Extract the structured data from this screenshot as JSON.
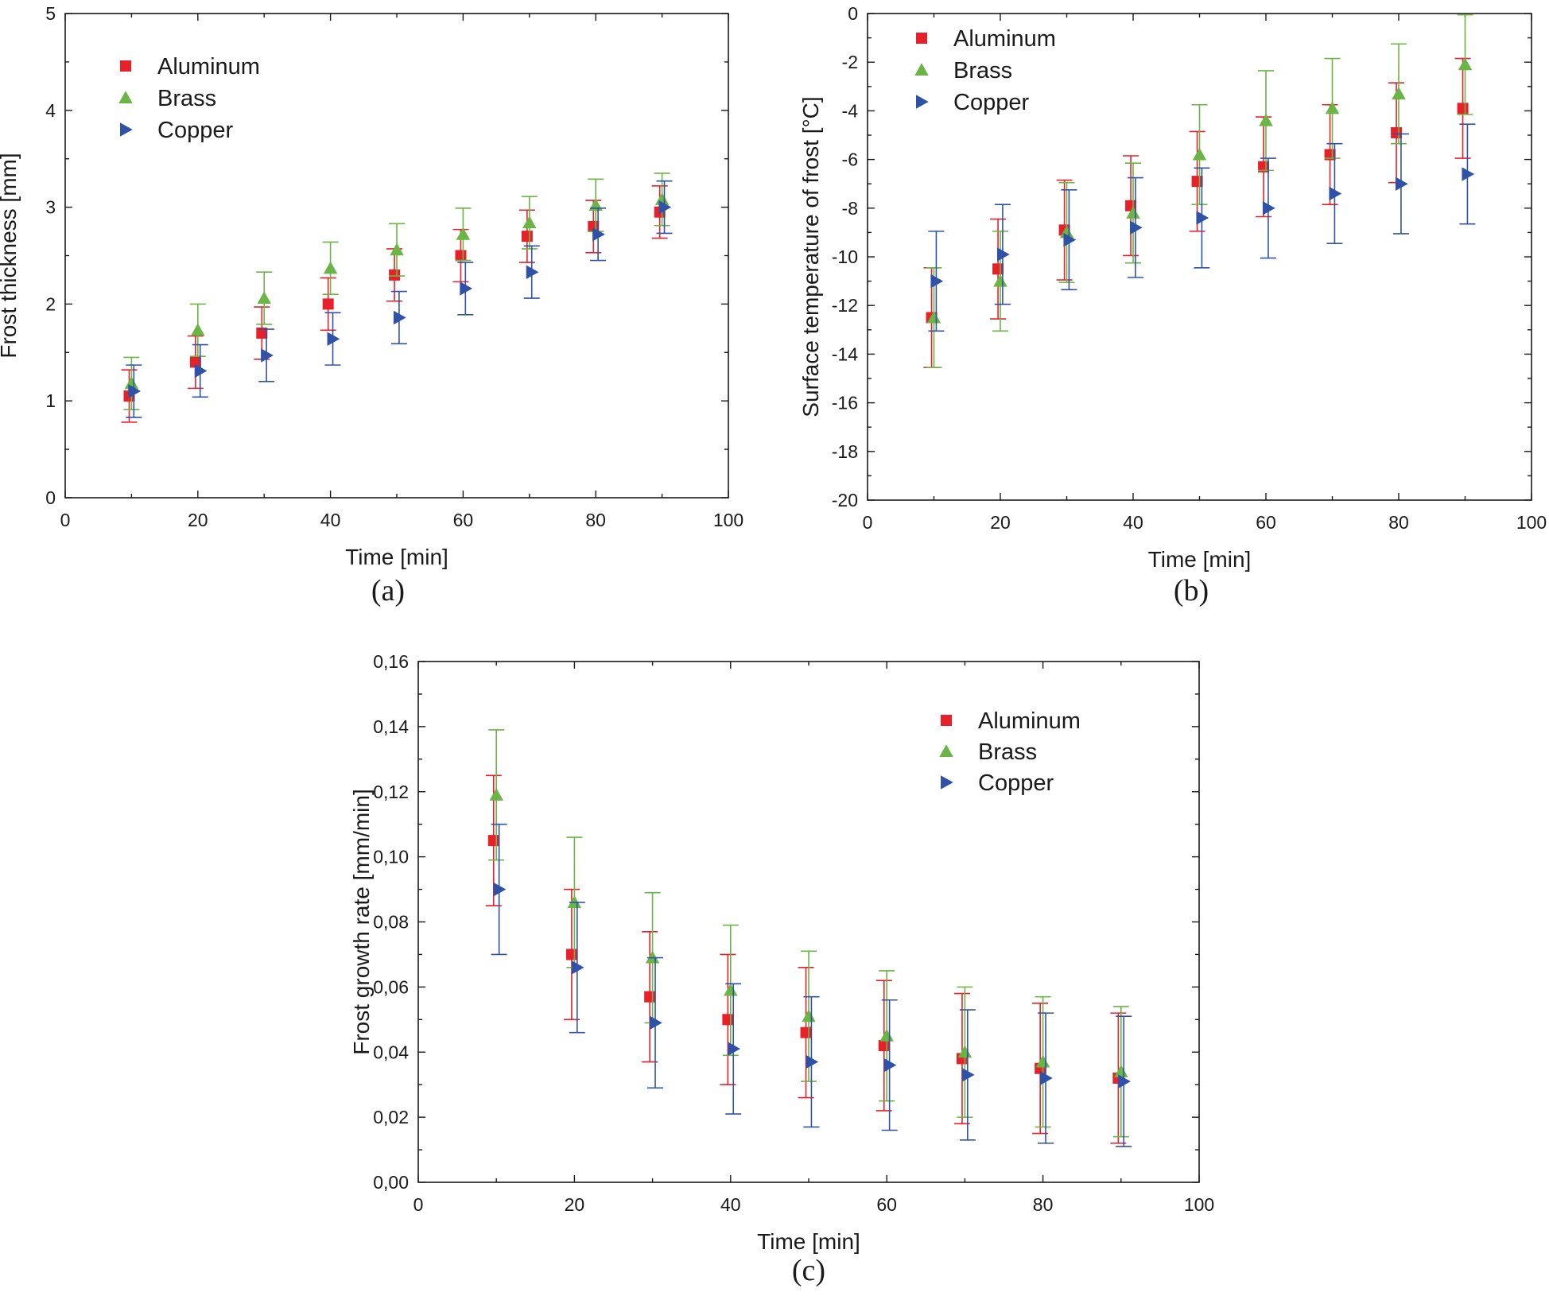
{
  "chart_data": [
    {
      "type": "scatter",
      "panel": "(a)",
      "xlabel": "Time [min]",
      "ylabel": "Frost thickness [mm]",
      "xlim": [
        0,
        100
      ],
      "ylim": [
        0,
        5
      ],
      "xticks": [
        0,
        20,
        40,
        60,
        80,
        100
      ],
      "yticks": [
        0,
        1,
        2,
        3,
        4,
        5
      ],
      "x_tick_labels": [
        "0",
        "20",
        "40",
        "60",
        "80",
        "100"
      ],
      "y_tick_labels": [
        "0",
        "1",
        "2",
        "3",
        "4",
        "5"
      ],
      "legend": "top-left",
      "grid": false,
      "x": [
        10,
        20,
        30,
        40,
        50,
        60,
        70,
        80,
        90
      ],
      "series": [
        {
          "name": "Aluminum",
          "marker": "square",
          "color": "#e8202a",
          "values": [
            1.05,
            1.4,
            1.7,
            2.0,
            2.3,
            2.5,
            2.7,
            2.8,
            2.95
          ],
          "errors": [
            0.27,
            0.27,
            0.27,
            0.27,
            0.27,
            0.27,
            0.27,
            0.27,
            0.27
          ]
        },
        {
          "name": "Brass",
          "marker": "triangle-up",
          "color": "#6ab545",
          "values": [
            1.18,
            1.73,
            2.06,
            2.37,
            2.56,
            2.72,
            2.84,
            3.02,
            3.08
          ],
          "errors": [
            0.27,
            0.27,
            0.27,
            0.27,
            0.27,
            0.27,
            0.27,
            0.27,
            0.27
          ]
        },
        {
          "name": "Copper",
          "marker": "triangle-right",
          "color": "#2f52a6",
          "values": [
            1.1,
            1.31,
            1.47,
            1.64,
            1.86,
            2.16,
            2.33,
            2.72,
            3.0
          ],
          "errors": [
            0.27,
            0.27,
            0.27,
            0.27,
            0.27,
            0.27,
            0.27,
            0.27,
            0.27
          ]
        }
      ]
    },
    {
      "type": "scatter",
      "panel": "(b)",
      "xlabel": "Time [min]",
      "ylabel": "Surface temperature of frost [°C]",
      "xlim": [
        0,
        100
      ],
      "ylim": [
        -20,
        0
      ],
      "xticks": [
        0,
        20,
        40,
        60,
        80,
        100
      ],
      "yticks": [
        -20,
        -18,
        -16,
        -14,
        -12,
        -10,
        -8,
        -6,
        -4,
        -2,
        0
      ],
      "x_tick_labels": [
        "0",
        "20",
        "40",
        "60",
        "80",
        "100"
      ],
      "y_tick_labels": [
        "-20",
        "-18",
        "-16",
        "-14",
        "-12",
        "-10",
        "-8",
        "-6",
        "-4",
        "-2",
        "0"
      ],
      "legend": "top-left",
      "grid": false,
      "x": [
        10,
        20,
        30,
        40,
        50,
        60,
        70,
        80,
        90
      ],
      "series": [
        {
          "name": "Aluminum",
          "marker": "square",
          "color": "#e8202a",
          "values": [
            -12.5,
            -10.5,
            -8.9,
            -7.9,
            -6.9,
            -6.3,
            -5.8,
            -4.9,
            -3.9
          ],
          "errors": [
            2.05,
            2.05,
            2.05,
            2.05,
            2.05,
            2.05,
            2.05,
            2.05,
            2.05
          ]
        },
        {
          "name": "Brass",
          "marker": "triangle-up",
          "color": "#6ab545",
          "values": [
            -12.5,
            -11.0,
            -9.0,
            -8.2,
            -5.8,
            -4.4,
            -3.9,
            -3.3,
            -2.1
          ],
          "errors": [
            2.05,
            2.05,
            2.05,
            2.05,
            2.05,
            2.05,
            2.05,
            2.05,
            2.05
          ]
        },
        {
          "name": "Copper",
          "marker": "triangle-right",
          "color": "#2f52a6",
          "values": [
            -11.0,
            -9.9,
            -9.3,
            -8.8,
            -8.4,
            -8.0,
            -7.4,
            -7.0,
            -6.6
          ],
          "errors": [
            2.05,
            2.05,
            2.05,
            2.05,
            2.05,
            2.05,
            2.05,
            2.05,
            2.05
          ]
        }
      ]
    },
    {
      "type": "scatter",
      "panel": "(c)",
      "xlabel": "Time [min]",
      "ylabel": "Frost growth rate [mm/min]",
      "xlim": [
        0,
        100
      ],
      "ylim": [
        0,
        0.16
      ],
      "xticks": [
        0,
        20,
        40,
        60,
        80,
        100
      ],
      "yticks": [
        0,
        0.02,
        0.04,
        0.06,
        0.08,
        0.1,
        0.12,
        0.14,
        0.16
      ],
      "x_tick_labels": [
        "0",
        "20",
        "40",
        "60",
        "80",
        "100"
      ],
      "y_tick_labels": [
        "0,00",
        "0,02",
        "0,04",
        "0,06",
        "0,08",
        "0,10",
        "0,12",
        "0,14",
        "0,16"
      ],
      "legend": "top-right",
      "grid": false,
      "x": [
        10,
        20,
        30,
        40,
        50,
        60,
        70,
        80,
        90
      ],
      "series": [
        {
          "name": "Aluminum",
          "marker": "square",
          "color": "#e8202a",
          "values": [
            0.105,
            0.07,
            0.057,
            0.05,
            0.046,
            0.042,
            0.038,
            0.035,
            0.032
          ],
          "errors": [
            0.02,
            0.02,
            0.02,
            0.02,
            0.02,
            0.02,
            0.02,
            0.02,
            0.02
          ]
        },
        {
          "name": "Brass",
          "marker": "triangle-up",
          "color": "#6ab545",
          "values": [
            0.119,
            0.086,
            0.069,
            0.059,
            0.051,
            0.045,
            0.04,
            0.037,
            0.034
          ],
          "errors": [
            0.02,
            0.02,
            0.02,
            0.02,
            0.02,
            0.02,
            0.02,
            0.02,
            0.02
          ]
        },
        {
          "name": "Copper",
          "marker": "triangle-right",
          "color": "#2f52a6",
          "values": [
            0.09,
            0.066,
            0.049,
            0.041,
            0.037,
            0.036,
            0.033,
            0.032,
            0.031
          ],
          "errors": [
            0.02,
            0.02,
            0.02,
            0.02,
            0.02,
            0.02,
            0.02,
            0.02,
            0.02
          ]
        }
      ]
    }
  ]
}
